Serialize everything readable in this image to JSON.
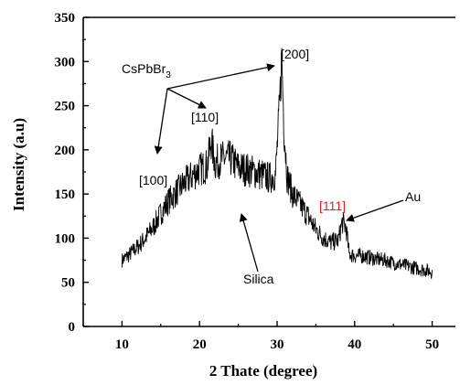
{
  "chart_data": {
    "type": "line",
    "xlabel": "2 Thate (degree)",
    "ylabel": "Intensity (a.u)",
    "xlim": [
      5,
      53
    ],
    "ylim": [
      0,
      350
    ],
    "xticks": [
      10,
      20,
      30,
      40,
      50
    ],
    "yticks": [
      0,
      50,
      100,
      150,
      200,
      250,
      300,
      350
    ],
    "grid": false,
    "series": [
      {
        "color": "#000000",
        "noisy": true,
        "x": [
          10,
          11,
          12,
          13,
          14,
          15,
          16,
          17,
          18,
          19,
          20,
          21,
          21.5,
          22,
          23,
          24,
          25,
          26,
          27,
          28,
          29,
          29.8,
          30.3,
          30.6,
          30.9,
          31.3,
          32,
          33,
          34,
          35,
          36,
          37,
          37.9,
          38.4,
          38.9,
          39.3,
          40,
          41,
          42,
          43,
          44,
          45,
          46,
          47,
          48,
          49,
          50
        ],
        "y": [
          75,
          82,
          90,
          100,
          112,
          128,
          142,
          152,
          162,
          170,
          178,
          182,
          210,
          185,
          190,
          190,
          180,
          178,
          175,
          172,
          168,
          172,
          245,
          305,
          225,
          170,
          150,
          138,
          125,
          110,
          100,
          95,
          98,
          118,
          112,
          82,
          80,
          80,
          78,
          76,
          75,
          72,
          70,
          68,
          66,
          64,
          62
        ]
      }
    ],
    "annotations": [
      {
        "text": "CsPbBr",
        "subscript": "3"
      },
      {
        "text": "[200]"
      },
      {
        "text": "[110]"
      },
      {
        "text": "[100]"
      },
      {
        "text": "[111]",
        "color": "#e02020"
      },
      {
        "text": "Au"
      },
      {
        "text": "Silica"
      }
    ]
  }
}
